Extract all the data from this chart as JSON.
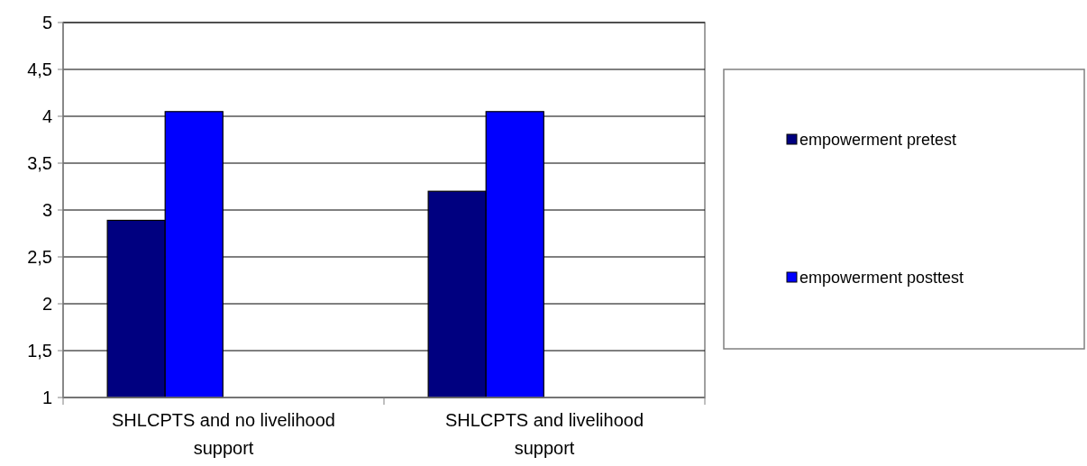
{
  "chart_data": {
    "type": "bar",
    "categories": [
      "SHLCPTS and no livelihood support",
      "SHLCPTS and livelihood support"
    ],
    "series": [
      {
        "name": "empowerment pretest",
        "color": "#000080",
        "values": [
          2.89,
          3.2
        ]
      },
      {
        "name": "empowerment posttest",
        "color": "#0000ff",
        "values": [
          4.05,
          4.05
        ]
      }
    ],
    "ylim": [
      1,
      5
    ],
    "yticks": [
      1,
      {
        "value": 1.5,
        "label": "1,5"
      },
      2,
      {
        "value": 2.5,
        "label": "2,5"
      },
      3,
      {
        "value": 3.5,
        "label": "3,5"
      },
      4,
      {
        "value": 4.5,
        "label": "4,5"
      },
      5
    ],
    "grid": "y",
    "legend": "right"
  }
}
